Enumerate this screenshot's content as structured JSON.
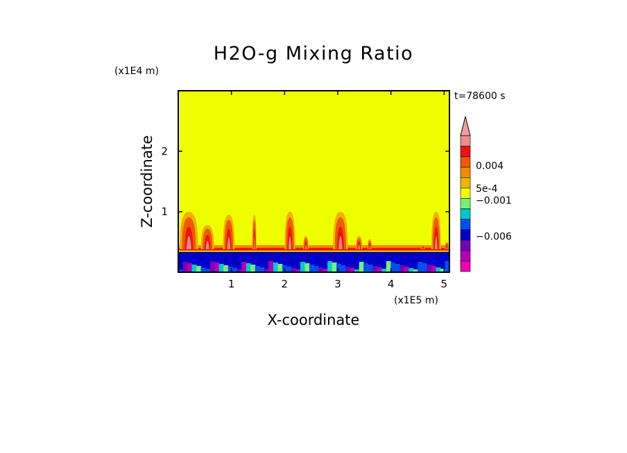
{
  "chart_data": {
    "type": "heatmap",
    "title": "H2O-g Mixing Ratio",
    "time_label": "t=78600 s",
    "xlabel": "X-coordinate",
    "ylabel": "Z-coordinate",
    "x_scale_label": "(x1E5 m)",
    "y_scale_label": "(x1E4 m)",
    "xlim": [
      0,
      5.1
    ],
    "ylim": [
      0,
      3.0
    ],
    "x_ticks": [
      1,
      2,
      3,
      4,
      5
    ],
    "x_tick_labels": [
      "1",
      "2",
      "3",
      "4",
      "5"
    ],
    "y_ticks": [
      1,
      2
    ],
    "y_tick_labels": [
      "1",
      "2"
    ],
    "background_level_color": "#f0ff00",
    "colorbar": {
      "levels_top_to_bottom": [
        {
          "color": "#f08c8c"
        },
        {
          "color": "#f01414"
        },
        {
          "color": "#f05a00"
        },
        {
          "color": "#f08c00"
        },
        {
          "color": "#f0b400"
        },
        {
          "color": "#f0ff00"
        },
        {
          "color": "#78f078"
        },
        {
          "color": "#00c8c8"
        },
        {
          "color": "#0050f0"
        },
        {
          "color": "#0000c8"
        },
        {
          "color": "#7800b4"
        },
        {
          "color": "#b400b4"
        },
        {
          "color": "#f000b4"
        }
      ],
      "arrow_color": "#f0a0a0",
      "labels": [
        "0.004",
        "5e-4",
        "−0.001",
        "−0.006"
      ]
    },
    "plumes": [
      {
        "x": 0.2,
        "top": 1.0,
        "width": 0.35
      },
      {
        "x": 0.55,
        "top": 0.78,
        "width": 0.25
      },
      {
        "x": 0.95,
        "top": 0.95,
        "width": 0.22
      },
      {
        "x": 1.43,
        "top": 0.95,
        "width": 0.08
      },
      {
        "x": 2.1,
        "top": 1.0,
        "width": 0.2
      },
      {
        "x": 2.4,
        "top": 0.6,
        "width": 0.1
      },
      {
        "x": 3.05,
        "top": 1.0,
        "width": 0.28
      },
      {
        "x": 3.4,
        "top": 0.6,
        "width": 0.12
      },
      {
        "x": 3.6,
        "top": 0.55,
        "width": 0.08
      },
      {
        "x": 4.6,
        "top": 0.45,
        "width": 0.08
      },
      {
        "x": 4.85,
        "top": 1.0,
        "width": 0.18
      },
      {
        "x": 5.05,
        "top": 0.5,
        "width": 0.08
      }
    ],
    "surface_layer_top": 0.33,
    "boundary_layer_top": 0.38
  }
}
